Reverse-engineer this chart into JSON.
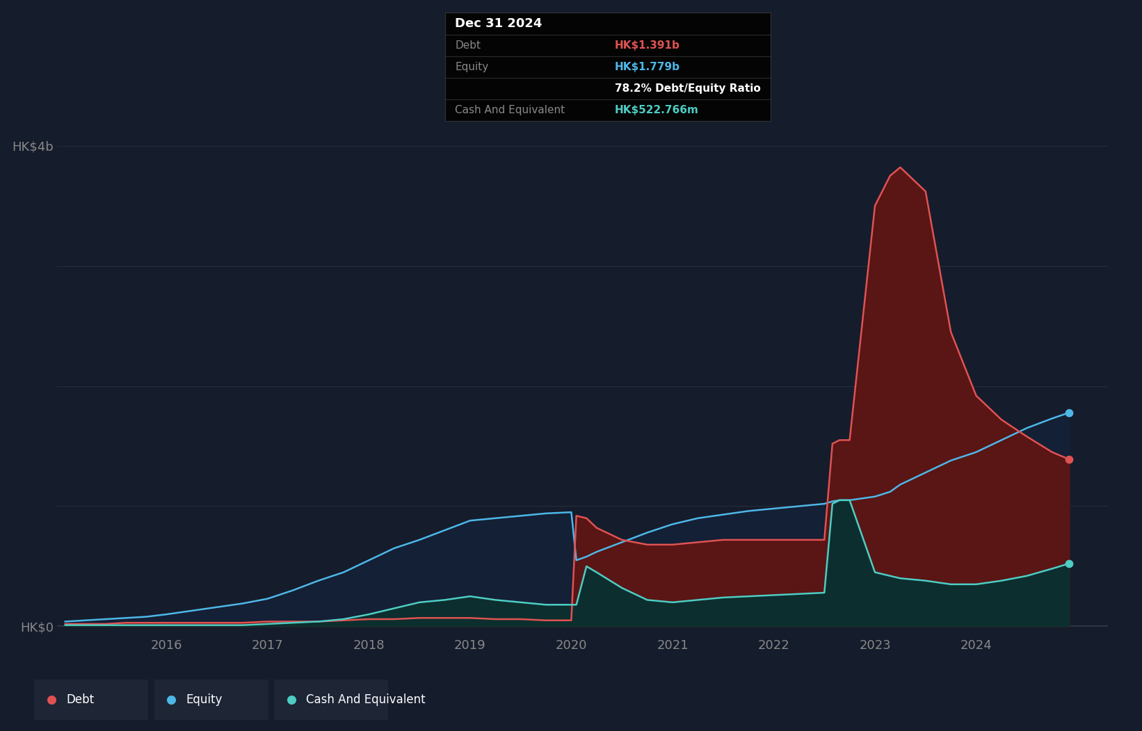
{
  "bg_color": "#151c2c",
  "plot_bg_color": "#151c2c",
  "grid_color": "#2a2e39",
  "debt_color": "#e05252",
  "equity_color": "#4db8e8",
  "cash_color": "#4ecdc4",
  "debt_fill": "#5a1515",
  "equity_fill": "#142035",
  "cash_fill": "#0d2e2e",
  "tooltip_bg": "#040404",
  "tooltip_title": "Dec 31 2024",
  "tooltip_debt_label": "Debt",
  "tooltip_debt_value": "HK$1.391b",
  "tooltip_equity_label": "Equity",
  "tooltip_equity_value": "HK$1.779b",
  "tooltip_ratio": "78.2% Debt/Equity Ratio",
  "tooltip_cash_label": "Cash And Equivalent",
  "tooltip_cash_value": "HK$522.766m",
  "legend_debt": "Debt",
  "legend_equity": "Equity",
  "legend_cash": "Cash And Equivalent",
  "legend_bg": "#1e2535",
  "dates": [
    2015.0,
    2015.2,
    2015.4,
    2015.6,
    2015.8,
    2016.0,
    2016.25,
    2016.5,
    2016.75,
    2017.0,
    2017.25,
    2017.5,
    2017.75,
    2018.0,
    2018.25,
    2018.5,
    2018.75,
    2019.0,
    2019.25,
    2019.5,
    2019.75,
    2020.0,
    2020.05,
    2020.15,
    2020.25,
    2020.5,
    2020.75,
    2021.0,
    2021.25,
    2021.5,
    2021.75,
    2022.0,
    2022.25,
    2022.5,
    2022.58,
    2022.65,
    2022.75,
    2023.0,
    2023.15,
    2023.25,
    2023.5,
    2023.75,
    2024.0,
    2024.25,
    2024.5,
    2024.75,
    2024.92
  ],
  "debt": [
    0.02,
    0.02,
    0.02,
    0.03,
    0.03,
    0.03,
    0.03,
    0.03,
    0.03,
    0.04,
    0.04,
    0.04,
    0.05,
    0.06,
    0.06,
    0.07,
    0.07,
    0.07,
    0.06,
    0.06,
    0.05,
    0.05,
    0.92,
    0.9,
    0.82,
    0.72,
    0.68,
    0.68,
    0.7,
    0.72,
    0.72,
    0.72,
    0.72,
    0.72,
    1.52,
    1.55,
    1.55,
    3.5,
    3.75,
    3.82,
    3.62,
    2.45,
    1.92,
    1.72,
    1.58,
    1.45,
    1.39
  ],
  "equity": [
    0.04,
    0.05,
    0.06,
    0.07,
    0.08,
    0.1,
    0.13,
    0.16,
    0.19,
    0.23,
    0.3,
    0.38,
    0.45,
    0.55,
    0.65,
    0.72,
    0.8,
    0.88,
    0.9,
    0.92,
    0.94,
    0.95,
    0.55,
    0.58,
    0.62,
    0.7,
    0.78,
    0.85,
    0.9,
    0.93,
    0.96,
    0.98,
    1.0,
    1.02,
    1.04,
    1.05,
    1.05,
    1.08,
    1.12,
    1.18,
    1.28,
    1.38,
    1.45,
    1.55,
    1.65,
    1.73,
    1.779
  ],
  "cash": [
    0.01,
    0.01,
    0.01,
    0.01,
    0.01,
    0.01,
    0.01,
    0.01,
    0.01,
    0.02,
    0.03,
    0.04,
    0.06,
    0.1,
    0.15,
    0.2,
    0.22,
    0.25,
    0.22,
    0.2,
    0.18,
    0.18,
    0.18,
    0.5,
    0.45,
    0.32,
    0.22,
    0.2,
    0.22,
    0.24,
    0.25,
    0.26,
    0.27,
    0.28,
    1.02,
    1.05,
    1.05,
    0.45,
    0.42,
    0.4,
    0.38,
    0.35,
    0.35,
    0.38,
    0.42,
    0.48,
    0.523
  ],
  "xlim_min": 2014.92,
  "xlim_max": 2025.3,
  "ylim_min": -0.08,
  "ylim_max": 4.3,
  "ytick_val_top": 4,
  "ytick_val_bot": 0,
  "ytick_label_top": "HK$4b",
  "ytick_label_bot": "HK$0",
  "xticks": [
    2016,
    2017,
    2018,
    2019,
    2020,
    2021,
    2022,
    2023,
    2024
  ],
  "xtick_labels": [
    "2016",
    "2017",
    "2018",
    "2019",
    "2020",
    "2021",
    "2022",
    "2023",
    "2024"
  ]
}
